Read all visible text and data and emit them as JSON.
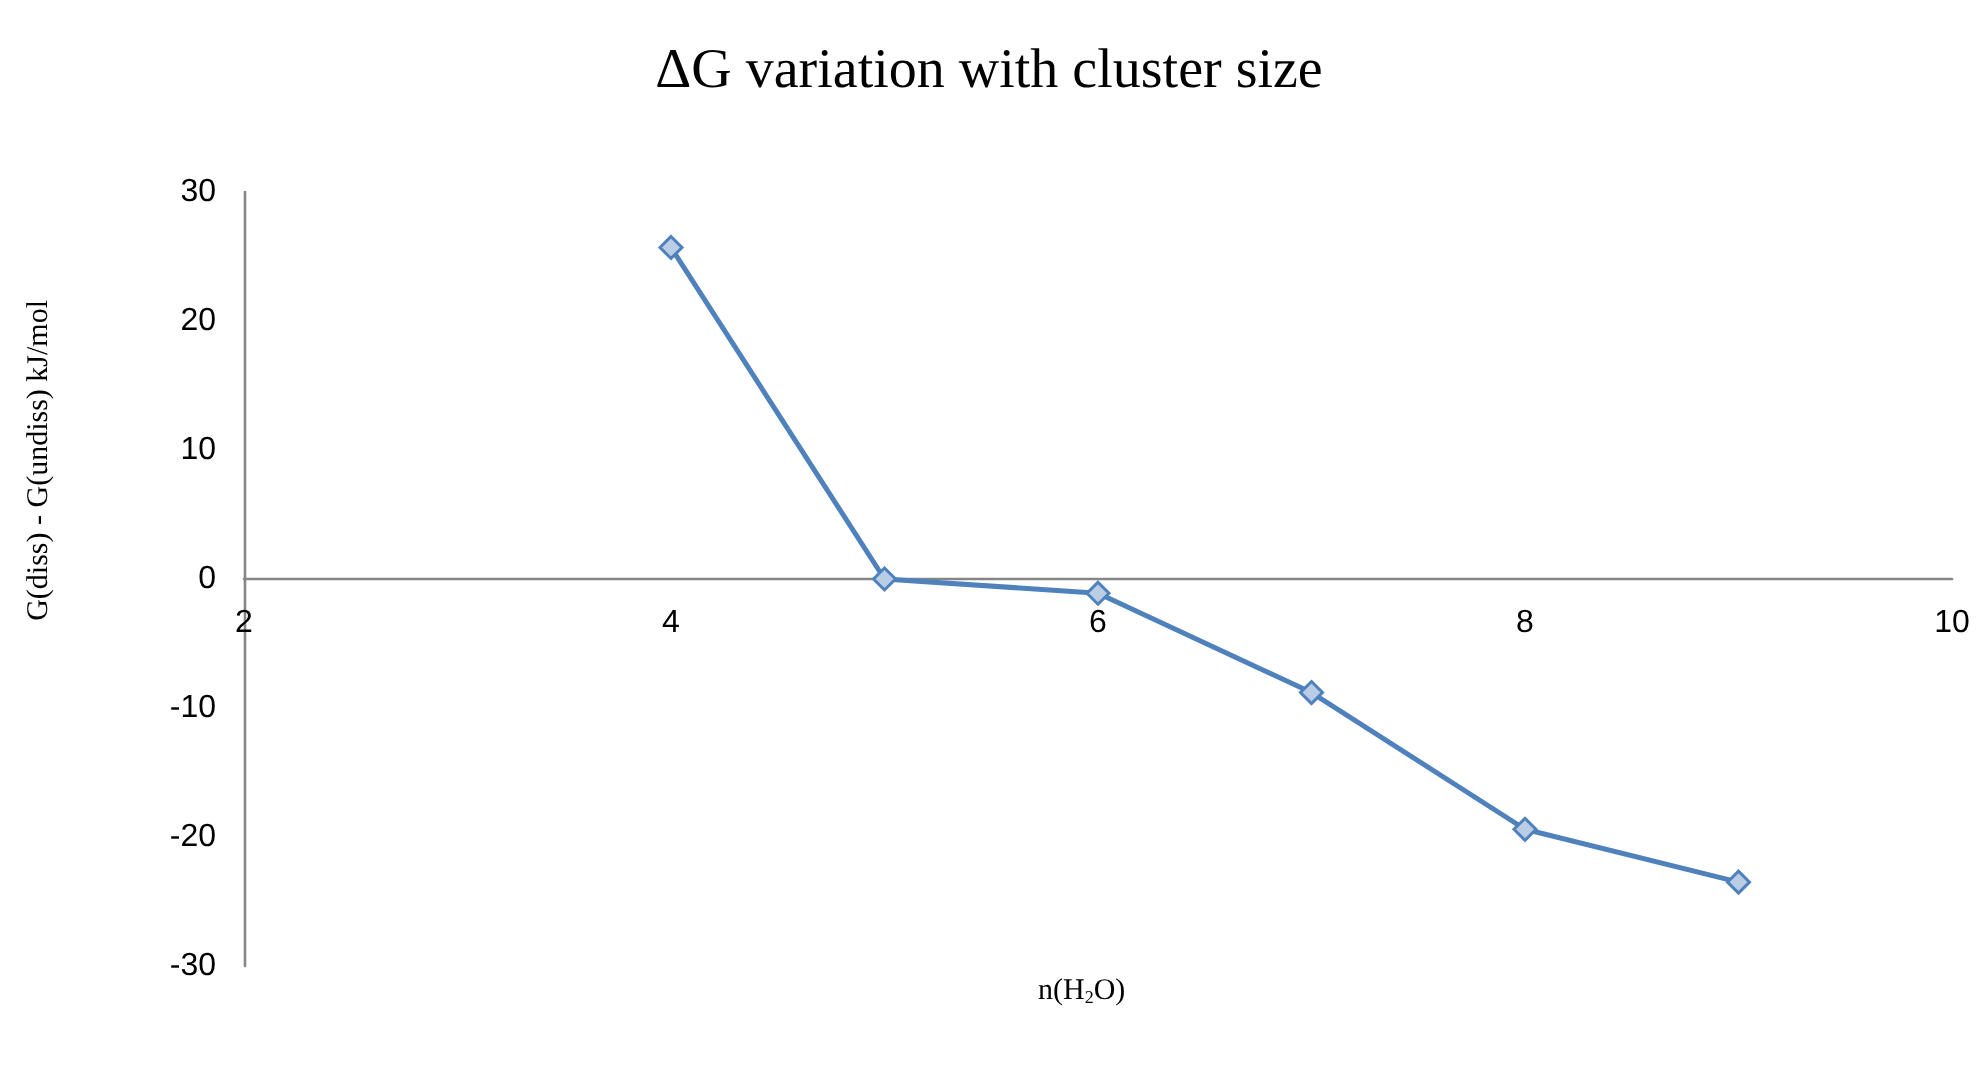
{
  "chart_data": {
    "type": "line",
    "title": "ΔG variation with cluster size",
    "xlabel": "n(H$_{2}$O)",
    "ylabel": "G(diss) - G(undiss) kJ/mol",
    "x": [
      4,
      5,
      6,
      7,
      8,
      9
    ],
    "series": [
      {
        "color": "#4f81bd",
        "values": [
          25.7,
          0,
          -1.1,
          -8.8,
          -19.4,
          -23.5
        ]
      }
    ],
    "xlim": [
      2,
      10
    ],
    "xticks": [
      2,
      4,
      6,
      8,
      10
    ],
    "ylim": [
      -30,
      30
    ],
    "yticks": [
      -30,
      -20,
      -10,
      0,
      10,
      20,
      30
    ],
    "grid": false,
    "marker": "diamond",
    "line_style": "solid"
  }
}
